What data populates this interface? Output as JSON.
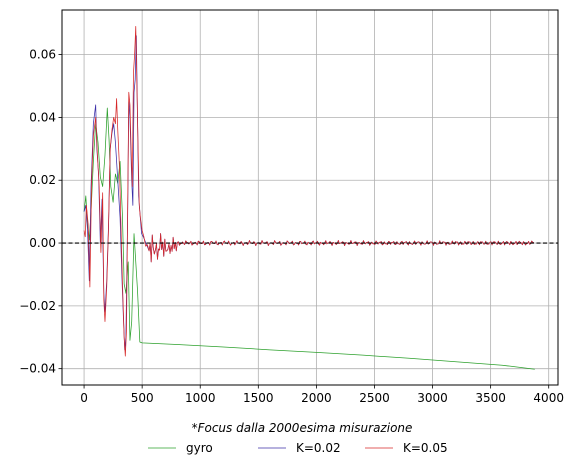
{
  "chart_data": {
    "type": "line",
    "title": "",
    "xlabel": "",
    "ylabel": "",
    "caption": "*Focus dalla 2000esima misurazione",
    "xlim": [
      -190,
      4080
    ],
    "ylim": [
      -0.0452,
      0.0742
    ],
    "xticks": [
      0,
      500,
      1000,
      1500,
      2000,
      2500,
      3000,
      3500,
      4000
    ],
    "xtick_labels": [
      "0",
      "500",
      "1000",
      "1500",
      "2000",
      "2500",
      "3000",
      "3500",
      "4000"
    ],
    "yticks": [
      -0.04,
      -0.02,
      0.0,
      0.02,
      0.04,
      0.06
    ],
    "ytick_labels": [
      "−0.04",
      "−0.02",
      "0.00",
      "0.02",
      "0.04",
      "0.06"
    ],
    "grid": true,
    "reference_line": {
      "y": 0.0,
      "style": "dashed",
      "color": "#000000"
    },
    "legend_position": "bottom-center",
    "series": [
      {
        "name": "gyro",
        "color": "#2ca02c",
        "points": [
          [
            0,
            0.01
          ],
          [
            15,
            0.015
          ],
          [
            30,
            0.006
          ],
          [
            45,
            0.001
          ],
          [
            60,
            0.01
          ],
          [
            80,
            0.026
          ],
          [
            100,
            0.038
          ],
          [
            120,
            0.032
          ],
          [
            140,
            0.021
          ],
          [
            160,
            0.018
          ],
          [
            180,
            0.028
          ],
          [
            200,
            0.043
          ],
          [
            215,
            0.033
          ],
          [
            230,
            0.018
          ],
          [
            250,
            0.013
          ],
          [
            270,
            0.022
          ],
          [
            290,
            0.019
          ],
          [
            310,
            0.026
          ],
          [
            330,
            0.009
          ],
          [
            345,
            -0.013
          ],
          [
            360,
            -0.016
          ],
          [
            380,
            -0.006
          ],
          [
            395,
            -0.031
          ],
          [
            410,
            -0.025
          ],
          [
            430,
            0.003
          ],
          [
            445,
            -0.006
          ],
          [
            460,
            -0.015
          ],
          [
            480,
            -0.0315
          ],
          [
            500,
            -0.0318
          ],
          [
            800,
            -0.0323
          ],
          [
            1200,
            -0.0331
          ],
          [
            1600,
            -0.034
          ],
          [
            2000,
            -0.0348
          ],
          [
            2400,
            -0.0357
          ],
          [
            2800,
            -0.0367
          ],
          [
            3200,
            -0.0378
          ],
          [
            3600,
            -0.0389
          ],
          [
            3880,
            -0.0402
          ]
        ]
      },
      {
        "name": "K=0.02",
        "color": "#3b2fa8",
        "points": [
          [
            0,
            0.01
          ],
          [
            15,
            0.012
          ],
          [
            30,
            0.004
          ],
          [
            45,
            -0.012
          ],
          [
            60,
            0.018
          ],
          [
            80,
            0.038
          ],
          [
            100,
            0.044
          ],
          [
            110,
            0.03
          ],
          [
            125,
            0.022
          ],
          [
            140,
            0.0
          ],
          [
            155,
            0.014
          ],
          [
            170,
            -0.016
          ],
          [
            180,
            -0.022
          ],
          [
            195,
            -0.012
          ],
          [
            210,
            0.005
          ],
          [
            225,
            0.03
          ],
          [
            240,
            0.035
          ],
          [
            255,
            0.038
          ],
          [
            270,
            0.032
          ],
          [
            290,
            0.02
          ],
          [
            310,
            0.008
          ],
          [
            325,
            -0.01
          ],
          [
            340,
            -0.025
          ],
          [
            350,
            -0.034
          ],
          [
            360,
            -0.03
          ],
          [
            375,
            0.008
          ],
          [
            385,
            0.045
          ],
          [
            395,
            0.04
          ],
          [
            410,
            0.02
          ],
          [
            420,
            0.012
          ],
          [
            430,
            0.048
          ],
          [
            440,
            0.052
          ],
          [
            450,
            0.066
          ],
          [
            460,
            0.04
          ],
          [
            470,
            0.015
          ],
          [
            480,
            0.01
          ],
          [
            495,
            0.003
          ],
          [
            510,
            0.002
          ]
        ]
      },
      {
        "name": "K=0.05",
        "color": "#d62728",
        "points": [
          [
            0,
            0.004
          ],
          [
            10,
            0.002
          ],
          [
            20,
            0.012
          ],
          [
            35,
            0.006
          ],
          [
            50,
            -0.014
          ],
          [
            65,
            0.02
          ],
          [
            80,
            0.034
          ],
          [
            100,
            0.04
          ],
          [
            115,
            0.028
          ],
          [
            130,
            0.018
          ],
          [
            145,
            -0.003
          ],
          [
            160,
            0.016
          ],
          [
            170,
            -0.018
          ],
          [
            180,
            -0.025
          ],
          [
            195,
            -0.014
          ],
          [
            210,
            0.004
          ],
          [
            225,
            0.03
          ],
          [
            240,
            0.036
          ],
          [
            255,
            0.04
          ],
          [
            270,
            0.038
          ],
          [
            280,
            0.046
          ],
          [
            290,
            0.036
          ],
          [
            305,
            0.024
          ],
          [
            320,
            0.002
          ],
          [
            330,
            -0.012
          ],
          [
            345,
            -0.03
          ],
          [
            355,
            -0.036
          ],
          [
            365,
            -0.028
          ],
          [
            375,
            0.01
          ],
          [
            385,
            0.048
          ],
          [
            395,
            0.044
          ],
          [
            405,
            0.03
          ],
          [
            415,
            0.018
          ],
          [
            425,
            0.054
          ],
          [
            435,
            0.06
          ],
          [
            445,
            0.069
          ],
          [
            455,
            0.05
          ],
          [
            465,
            0.03
          ],
          [
            475,
            0.012
          ],
          [
            485,
            0.008
          ],
          [
            500,
            0.004
          ],
          [
            515,
            0.002
          ],
          [
            530,
            -0.001
          ],
          [
            545,
            -0.0005
          ]
        ]
      }
    ]
  }
}
